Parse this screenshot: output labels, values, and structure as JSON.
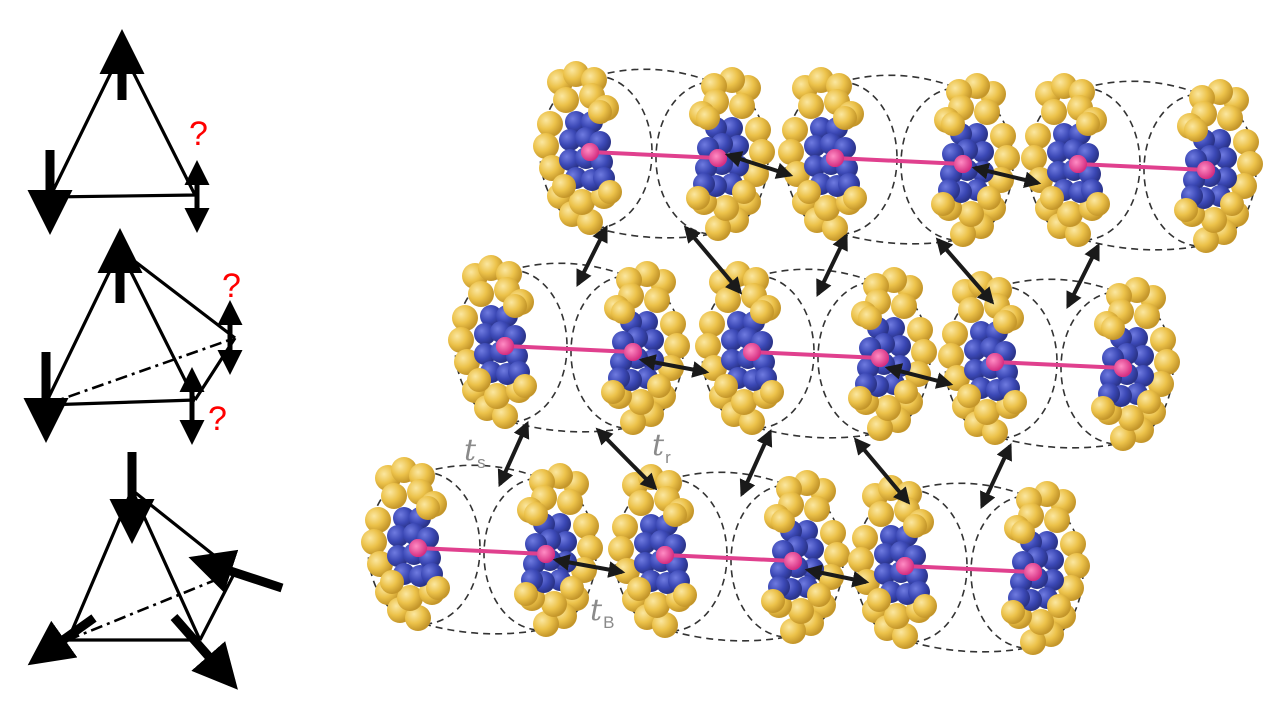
{
  "frustration_panels": {
    "question_mark": "?",
    "question_color": "#ff0000",
    "line_color": "#000000"
  },
  "lattice": {
    "hopping_labels": {
      "ts": {
        "symbol": "t",
        "subscript": "s"
      },
      "tr": {
        "symbol": "t",
        "subscript": "r"
      },
      "tB": {
        "symbol": "t",
        "subscript": "B"
      }
    },
    "colors": {
      "atom_gold": "#ecc24a",
      "ring_blue": "#3b48b5",
      "bond_pink": "#e0408e",
      "label_gray": "#8a8a8a"
    },
    "rows": 3,
    "molecules_per_row": 3
  }
}
